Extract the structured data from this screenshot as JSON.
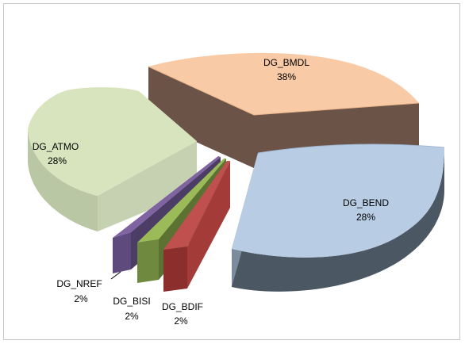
{
  "chart_data": {
    "type": "pie",
    "style": "exploded-3d",
    "slices": [
      {
        "label": "DG_BMDL",
        "value": 38,
        "percent_label": "38%",
        "color": "#f8cba6"
      },
      {
        "label": "DG_BEND",
        "value": 28,
        "percent_label": "28%",
        "color": "#b8cce4"
      },
      {
        "label": "DG_BDIF",
        "value": 2,
        "percent_label": "2%",
        "color": "#c0504d"
      },
      {
        "label": "DG_BISI",
        "value": 2,
        "percent_label": "2%",
        "color": "#9bbb59"
      },
      {
        "label": "DG_NREF",
        "value": 2,
        "percent_label": "2%",
        "color": "#8064a2"
      },
      {
        "label": "DG_ATMO",
        "value": 28,
        "percent_label": "28%",
        "color": "#d7e4bd"
      }
    ],
    "legend": "none"
  }
}
